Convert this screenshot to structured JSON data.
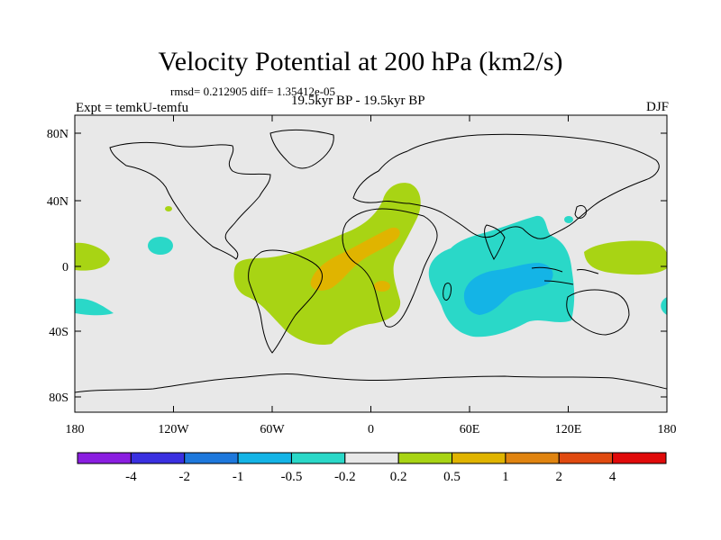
{
  "figure": {
    "title": "Velocity Potential at 200 hPa (km2/s)",
    "stats": "rmsd= 0.212905  diff= 1.35412e-05",
    "period": "19.5kyr BP - 19.5kyr BP",
    "experiment": "Expt = temkU-temfu",
    "season": "DJF"
  },
  "axes": {
    "lat_ticks": [
      "80N",
      "40N",
      "0",
      "40S",
      "80S"
    ],
    "lon_ticks": [
      "180",
      "120W",
      "60W",
      "0",
      "60E",
      "120E",
      "180"
    ]
  },
  "colorbar": {
    "labels": [
      "-4",
      "-2",
      "-1",
      "-0.5",
      "-0.2",
      "0.2",
      "0.5",
      "1",
      "2",
      "4"
    ],
    "colors": [
      "#8a1ee0",
      "#3a30e0",
      "#1e78dc",
      "#14b4e6",
      "#2ad8c8",
      "#e8e8e8",
      "#a8d414",
      "#e0b400",
      "#e08410",
      "#e04a10",
      "#e00a0a"
    ]
  },
  "colors": {
    "ocean": "#e8e8e8",
    "neg_weak": "#2ad8c8",
    "neg_mod": "#14b4e6",
    "pos_weak": "#a8d414",
    "pos_mod": "#e0b400"
  }
}
